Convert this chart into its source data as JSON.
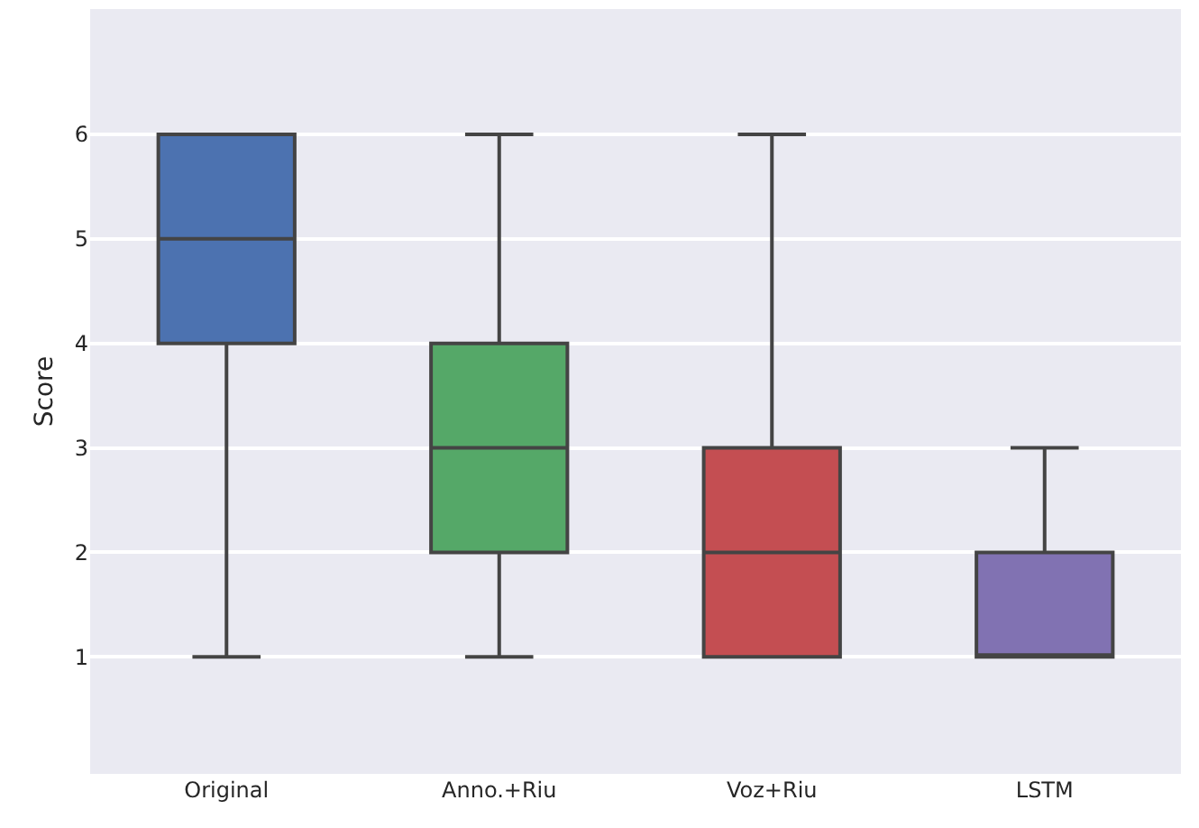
{
  "chart_data": {
    "type": "box",
    "ylabel": "Score",
    "categories": [
      "Original",
      "Anno.+Riu",
      "Voz+Riu",
      "LSTM"
    ],
    "colors": [
      "#4c72b0",
      "#55a868",
      "#c44e52",
      "#8172b2"
    ],
    "boxes": [
      {
        "low": 1,
        "q1": 4,
        "median": 5,
        "q3": 6,
        "high": 6
      },
      {
        "low": 1,
        "q1": 2,
        "median": 3,
        "q3": 4,
        "high": 6
      },
      {
        "low": 1,
        "q1": 1,
        "median": 2,
        "q3": 3,
        "high": 6
      },
      {
        "low": 1,
        "q1": 1,
        "median": 1,
        "q3": 2,
        "high": 3
      }
    ],
    "ylim": [
      -0.12,
      7.2
    ],
    "yticks": [
      1,
      2,
      3,
      4,
      5,
      6
    ],
    "grid": "y"
  }
}
